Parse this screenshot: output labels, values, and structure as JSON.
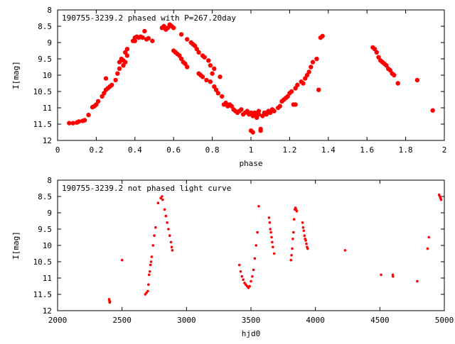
{
  "chart_data": [
    {
      "type": "scatter",
      "title": "190755-3239.2 phased with P=267.20day",
      "xlabel": "phase",
      "ylabel": "I[mag]",
      "xlim": [
        0,
        2
      ],
      "ylim": [
        12,
        8
      ],
      "y_inverted": true,
      "grid": false,
      "marker_color": "#ff0000",
      "marker": "filled-circle-large",
      "x_ticks": [
        "0",
        "0.2",
        "0.4",
        "0.6",
        "0.8",
        "1",
        "1.2",
        "1.4",
        "1.6",
        "1.8",
        "2"
      ],
      "y_ticks": [
        "8",
        "8.5",
        "9",
        "9.5",
        "10",
        "10.5",
        "11",
        "11.5",
        "12"
      ],
      "points": [
        [
          0.06,
          11.47
        ],
        [
          0.08,
          11.47
        ],
        [
          0.1,
          11.45
        ],
        [
          0.11,
          11.42
        ],
        [
          0.13,
          11.4
        ],
        [
          0.14,
          11.38
        ],
        [
          0.16,
          11.22
        ],
        [
          0.18,
          10.98
        ],
        [
          0.19,
          10.95
        ],
        [
          0.2,
          10.9
        ],
        [
          0.21,
          10.8
        ],
        [
          0.23,
          10.65
        ],
        [
          0.24,
          10.55
        ],
        [
          0.25,
          10.45
        ],
        [
          0.25,
          10.1
        ],
        [
          0.26,
          10.4
        ],
        [
          0.27,
          10.35
        ],
        [
          0.28,
          10.3
        ],
        [
          0.3,
          10.15
        ],
        [
          0.31,
          9.95
        ],
        [
          0.32,
          9.8
        ],
        [
          0.32,
          9.6
        ],
        [
          0.33,
          9.5
        ],
        [
          0.34,
          9.7
        ],
        [
          0.34,
          9.55
        ],
        [
          0.35,
          9.6
        ],
        [
          0.35,
          9.3
        ],
        [
          0.36,
          9.4
        ],
        [
          0.36,
          9.2
        ],
        [
          0.39,
          8.95
        ],
        [
          0.4,
          8.95
        ],
        [
          0.4,
          8.85
        ],
        [
          0.41,
          8.82
        ],
        [
          0.42,
          8.85
        ],
        [
          0.43,
          8.82
        ],
        [
          0.44,
          8.85
        ],
        [
          0.45,
          8.65
        ],
        [
          0.46,
          8.9
        ],
        [
          0.47,
          8.87
        ],
        [
          0.49,
          8.95
        ],
        [
          0.54,
          8.55
        ],
        [
          0.55,
          8.5
        ],
        [
          0.56,
          8.6
        ],
        [
          0.57,
          8.55
        ],
        [
          0.58,
          8.45
        ],
        [
          0.59,
          8.5
        ],
        [
          0.6,
          8.55
        ],
        [
          0.6,
          9.25
        ],
        [
          0.61,
          9.3
        ],
        [
          0.62,
          9.35
        ],
        [
          0.63,
          9.4
        ],
        [
          0.64,
          9.5
        ],
        [
          0.64,
          8.75
        ],
        [
          0.65,
          9.6
        ],
        [
          0.66,
          9.65
        ],
        [
          0.67,
          9.75
        ],
        [
          0.67,
          8.9
        ],
        [
          0.69,
          9.0
        ],
        [
          0.7,
          9.05
        ],
        [
          0.71,
          9.1
        ],
        [
          0.72,
          9.2
        ],
        [
          0.73,
          9.3
        ],
        [
          0.73,
          9.95
        ],
        [
          0.74,
          10.0
        ],
        [
          0.75,
          10.05
        ],
        [
          0.75,
          9.4
        ],
        [
          0.76,
          9.45
        ],
        [
          0.77,
          10.15
        ],
        [
          0.78,
          9.55
        ],
        [
          0.79,
          10.2
        ],
        [
          0.79,
          9.7
        ],
        [
          0.8,
          9.95
        ],
        [
          0.81,
          9.8
        ],
        [
          0.81,
          10.35
        ],
        [
          0.82,
          10.45
        ],
        [
          0.83,
          10.55
        ],
        [
          0.84,
          10.05
        ],
        [
          0.85,
          10.65
        ],
        [
          0.86,
          10.9
        ],
        [
          0.87,
          10.85
        ],
        [
          0.88,
          10.95
        ],
        [
          0.89,
          10.9
        ],
        [
          0.9,
          10.95
        ],
        [
          0.91,
          11.05
        ],
        [
          0.92,
          11.1
        ],
        [
          0.93,
          11.15
        ],
        [
          0.94,
          11.1
        ],
        [
          0.95,
          11.05
        ],
        [
          0.96,
          11.2
        ],
        [
          0.97,
          11.15
        ],
        [
          0.98,
          11.1
        ],
        [
          0.99,
          11.2
        ],
        [
          1.0,
          11.15
        ],
        [
          1.0,
          11.7
        ],
        [
          1.01,
          11.75
        ],
        [
          1.01,
          11.25
        ],
        [
          1.02,
          11.2
        ],
        [
          1.02,
          11.15
        ],
        [
          1.03,
          11.3
        ],
        [
          1.04,
          11.2
        ],
        [
          1.04,
          11.1
        ],
        [
          1.05,
          11.7
        ],
        [
          1.05,
          11.65
        ],
        [
          1.06,
          11.25
        ],
        [
          1.07,
          11.15
        ],
        [
          1.08,
          11.2
        ],
        [
          1.09,
          11.1
        ],
        [
          1.1,
          11.15
        ],
        [
          1.11,
          11.05
        ],
        [
          1.12,
          11.1
        ],
        [
          1.14,
          11.0
        ],
        [
          1.15,
          10.95
        ],
        [
          1.16,
          10.8
        ],
        [
          1.17,
          10.75
        ],
        [
          1.18,
          10.7
        ],
        [
          1.19,
          10.65
        ],
        [
          1.2,
          10.55
        ],
        [
          1.21,
          10.5
        ],
        [
          1.22,
          10.9
        ],
        [
          1.23,
          10.9
        ],
        [
          1.23,
          10.4
        ],
        [
          1.24,
          10.3
        ],
        [
          1.26,
          10.2
        ],
        [
          1.27,
          10.25
        ],
        [
          1.28,
          10.1
        ],
        [
          1.29,
          10.0
        ],
        [
          1.3,
          9.9
        ],
        [
          1.31,
          9.75
        ],
        [
          1.32,
          9.6
        ],
        [
          1.34,
          9.5
        ],
        [
          1.35,
          10.45
        ],
        [
          1.36,
          8.85
        ],
        [
          1.37,
          8.8
        ],
        [
          1.63,
          9.15
        ],
        [
          1.64,
          9.2
        ],
        [
          1.65,
          9.3
        ],
        [
          1.66,
          9.45
        ],
        [
          1.67,
          9.55
        ],
        [
          1.68,
          9.6
        ],
        [
          1.69,
          9.65
        ],
        [
          1.7,
          9.7
        ],
        [
          1.71,
          9.8
        ],
        [
          1.72,
          9.85
        ],
        [
          1.73,
          9.95
        ],
        [
          1.74,
          10.0
        ],
        [
          1.76,
          10.25
        ],
        [
          1.86,
          10.15
        ],
        [
          1.94,
          11.08
        ]
      ]
    },
    {
      "type": "scatter",
      "title": "190755-3239.2 not phased light curve",
      "xlabel": "hjd0",
      "ylabel": "I[mag]",
      "xlim": [
        2000,
        5000
      ],
      "ylim": [
        12,
        8
      ],
      "y_inverted": true,
      "grid": false,
      "marker_color": "#ff0000",
      "marker": "filled-circle-small",
      "x_ticks": [
        "2000",
        "2500",
        "3000",
        "3500",
        "4000",
        "4500",
        "5000"
      ],
      "y_ticks": [
        "8",
        "8.5",
        "9",
        "9.5",
        "10",
        "10.5",
        "11",
        "11.5",
        "12"
      ],
      "points": [
        [
          2400,
          11.65
        ],
        [
          2402,
          11.7
        ],
        [
          2404,
          11.75
        ],
        [
          2406,
          11.72
        ],
        [
          2500,
          10.45
        ],
        [
          2680,
          11.5
        ],
        [
          2690,
          11.45
        ],
        [
          2700,
          11.4
        ],
        [
          2705,
          11.2
        ],
        [
          2710,
          10.9
        ],
        [
          2715,
          10.8
        ],
        [
          2720,
          10.6
        ],
        [
          2725,
          10.5
        ],
        [
          2730,
          10.35
        ],
        [
          2740,
          10.0
        ],
        [
          2750,
          9.7
        ],
        [
          2760,
          9.45
        ],
        [
          2780,
          8.7
        ],
        [
          2800,
          8.55
        ],
        [
          2810,
          8.5
        ],
        [
          2815,
          8.6
        ],
        [
          2830,
          8.9
        ],
        [
          2840,
          9.1
        ],
        [
          2850,
          9.3
        ],
        [
          2860,
          9.5
        ],
        [
          2870,
          9.7
        ],
        [
          2880,
          9.9
        ],
        [
          2885,
          10.05
        ],
        [
          2890,
          10.15
        ],
        [
          3410,
          10.6
        ],
        [
          3420,
          10.8
        ],
        [
          3430,
          10.95
        ],
        [
          3440,
          11.05
        ],
        [
          3450,
          11.15
        ],
        [
          3460,
          11.2
        ],
        [
          3470,
          11.25
        ],
        [
          3480,
          11.3
        ],
        [
          3490,
          11.25
        ],
        [
          3500,
          11.1
        ],
        [
          3510,
          10.95
        ],
        [
          3520,
          10.75
        ],
        [
          3530,
          10.4
        ],
        [
          3540,
          10.0
        ],
        [
          3550,
          9.6
        ],
        [
          3560,
          8.8
        ],
        [
          3640,
          9.15
        ],
        [
          3645,
          9.3
        ],
        [
          3650,
          9.5
        ],
        [
          3655,
          9.6
        ],
        [
          3660,
          9.75
        ],
        [
          3665,
          9.9
        ],
        [
          3670,
          10.05
        ],
        [
          3680,
          10.25
        ],
        [
          3810,
          10.45
        ],
        [
          3815,
          10.3
        ],
        [
          3820,
          10.1
        ],
        [
          3825,
          9.8
        ],
        [
          3830,
          9.6
        ],
        [
          3835,
          9.2
        ],
        [
          3840,
          8.9
        ],
        [
          3845,
          8.85
        ],
        [
          3850,
          8.9
        ],
        [
          3855,
          8.95
        ],
        [
          3900,
          9.3
        ],
        [
          3905,
          9.45
        ],
        [
          3910,
          9.55
        ],
        [
          3915,
          9.7
        ],
        [
          3920,
          9.8
        ],
        [
          3925,
          9.85
        ],
        [
          3930,
          9.95
        ],
        [
          3935,
          10.05
        ],
        [
          3940,
          10.1
        ],
        [
          4230,
          10.15
        ],
        [
          4510,
          10.9
        ],
        [
          4600,
          10.9
        ],
        [
          4602,
          10.95
        ],
        [
          4790,
          11.1
        ],
        [
          4870,
          10.1
        ],
        [
          4880,
          9.75
        ],
        [
          4960,
          8.45
        ],
        [
          4965,
          8.5
        ],
        [
          4970,
          8.55
        ],
        [
          4975,
          8.6
        ]
      ]
    }
  ]
}
